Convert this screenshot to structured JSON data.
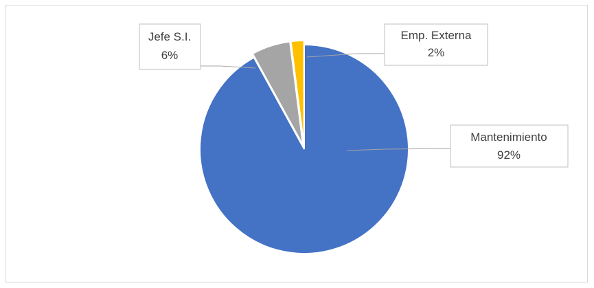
{
  "chart_data": {
    "type": "pie",
    "title": "",
    "slices": [
      {
        "label": "Mantenimiento",
        "value": 92,
        "percent_label": "92%",
        "color": "#4472c4"
      },
      {
        "label": "Jefe S.I.",
        "value": 6,
        "percent_label": "6%",
        "color": "#a5a5a5"
      },
      {
        "label": "Emp. Externa",
        "value": 2,
        "percent_label": "2%",
        "color": "#ffc000"
      }
    ],
    "start_angle_deg": 0,
    "direction": "clockwise",
    "exploded": true,
    "legend": "none",
    "data_labels": "callouts"
  }
}
